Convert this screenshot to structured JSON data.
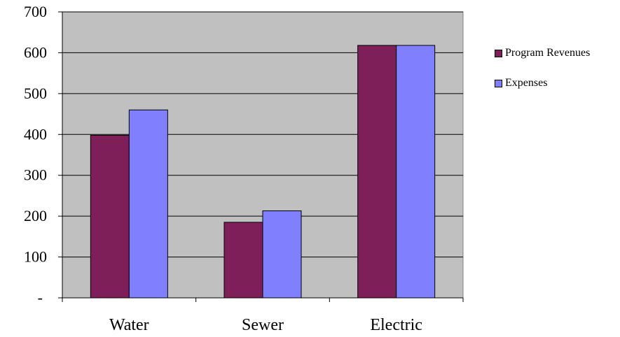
{
  "chart_data": {
    "type": "bar",
    "title": "",
    "xlabel": "",
    "ylabel": "",
    "categories": [
      "Water",
      "Sewer",
      "Electric"
    ],
    "series": [
      {
        "name": "Program Revenues",
        "values": [
          398,
          185,
          618
        ],
        "color": "#7F1F5A"
      },
      {
        "name": "Expenses",
        "values": [
          460,
          213,
          618
        ],
        "color": "#8080FF"
      }
    ],
    "ylim": [
      0,
      700
    ],
    "yticks": [
      0,
      100,
      200,
      300,
      400,
      500,
      600,
      700
    ],
    "ytick_labels": [
      "-",
      "100",
      "200",
      "300",
      "400",
      "500",
      "600",
      "700"
    ],
    "grid": true,
    "plot_background": "#C0C0C0",
    "legend_position": "right"
  },
  "legend": {
    "items": [
      "Program Revenues",
      "Expenses"
    ]
  }
}
